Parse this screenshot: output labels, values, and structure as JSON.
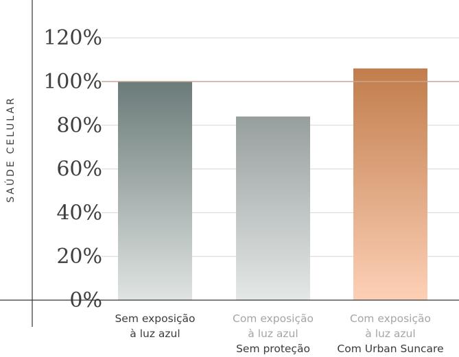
{
  "chart_data": {
    "type": "bar",
    "ylabel": "SAÚDE CELULAR",
    "ylim": [
      0,
      120
    ],
    "ticks": [
      "0%",
      "20%",
      "40%",
      "60%",
      "80%",
      "100%",
      "120%"
    ],
    "tick_values": [
      0,
      20,
      40,
      60,
      80,
      100,
      120
    ],
    "reference_line": 100,
    "grid": true,
    "categories": [
      {
        "lines": [
          "Sem exposição",
          "à luz azul"
        ],
        "highlight_lines": []
      },
      {
        "lines": [
          "Com exposição",
          "à luz azul"
        ],
        "highlight_lines": [
          "Sem proteção"
        ]
      },
      {
        "lines": [
          "Com exposição",
          "à luz azul"
        ],
        "highlight_lines": [
          "Com Urban Suncare"
        ]
      }
    ],
    "values": [
      100,
      84,
      106
    ],
    "colors": {
      "bar1_top": "#6b7b79",
      "bar1_bottom": "#dfe4e2",
      "bar2_top": "#979f9e",
      "bar2_bottom": "#e4e8e7",
      "bar3_top": "#c17d4c",
      "bar3_bottom": "#fdd0b6",
      "reference_line": "#c9a58d",
      "grid": "#d6d6d6",
      "axis": "#333333",
      "label_dark": "#3a3a3a",
      "label_light": "#a2a6a5"
    }
  }
}
